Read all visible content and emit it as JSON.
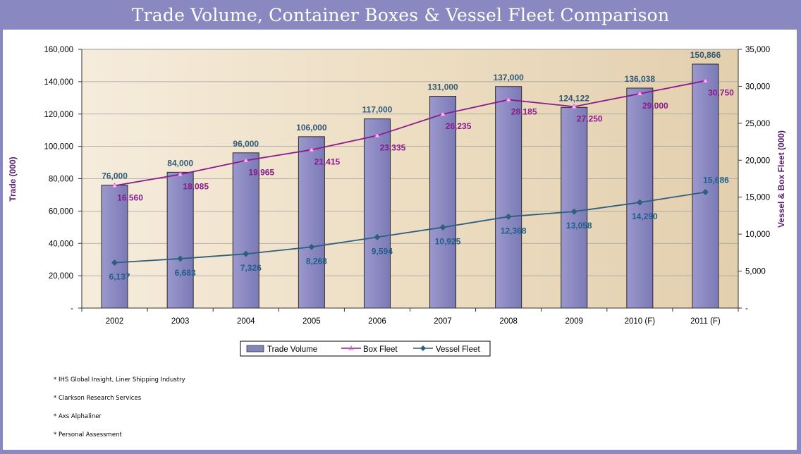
{
  "title": "Trade Volume, Container Boxes & Vessel Fleet Comparison",
  "chart_data": {
    "type": "bar",
    "categories": [
      "2002",
      "2003",
      "2004",
      "2005",
      "2006",
      "2007",
      "2008",
      "2009",
      "2010 (F)",
      "2011 (F)"
    ],
    "series": [
      {
        "name": "Trade Volume",
        "type": "bar",
        "axis": "left",
        "color": "#8585be",
        "values": [
          76000,
          84000,
          96000,
          106000,
          117000,
          131000,
          137000,
          124122,
          136038,
          150866
        ],
        "labels": [
          "76,000",
          "84,000",
          "96,000",
          "106,000",
          "117,000",
          "131,000",
          "137,000",
          "124,122",
          "136,038",
          "150,866"
        ]
      },
      {
        "name": "Box Fleet",
        "type": "line",
        "axis": "right",
        "color": "#8b1a8e",
        "values": [
          16560,
          18085,
          19965,
          21415,
          23335,
          26235,
          28185,
          27250,
          29000,
          30750
        ],
        "labels": [
          "16,560",
          "18,085",
          "19,965",
          "21,415",
          "23,335",
          "26,235",
          "28,185",
          "27,250",
          "29,000",
          "30,750"
        ]
      },
      {
        "name": "Vessel Fleet",
        "type": "line",
        "axis": "right",
        "color": "#2e5f7f",
        "values": [
          6137,
          6683,
          7326,
          8268,
          9594,
          10925,
          12368,
          13058,
          14290,
          15686
        ],
        "labels": [
          "6,137",
          "6,683",
          "7,326",
          "8,268",
          "9,594",
          "10,925",
          "12,368",
          "13,058",
          "14,290",
          "15,686"
        ]
      }
    ],
    "ylabel": "Trade (000)",
    "y2label": "Vessel & Box Fleet (000)",
    "ylim": [
      0,
      160000
    ],
    "y2lim": [
      0,
      35000
    ],
    "yticks": [
      "-",
      "20,000",
      "40,000",
      "60,000",
      "80,000",
      "100,000",
      "120,000",
      "140,000",
      "160,000"
    ],
    "y2ticks": [
      "-",
      "5,000",
      "10,000",
      "15,000",
      "20,000",
      "25,000",
      "30,000",
      "35,000"
    ],
    "legend": [
      "Trade Volume",
      "Box Fleet",
      "Vessel Fleet"
    ],
    "legend_position": "bottom"
  },
  "notes": [
    "* IHS Global Insight, Liner Shipping Industry",
    "* Clarkson Research Services",
    "* Axs Alphaliner",
    "* Personal Assessment"
  ]
}
